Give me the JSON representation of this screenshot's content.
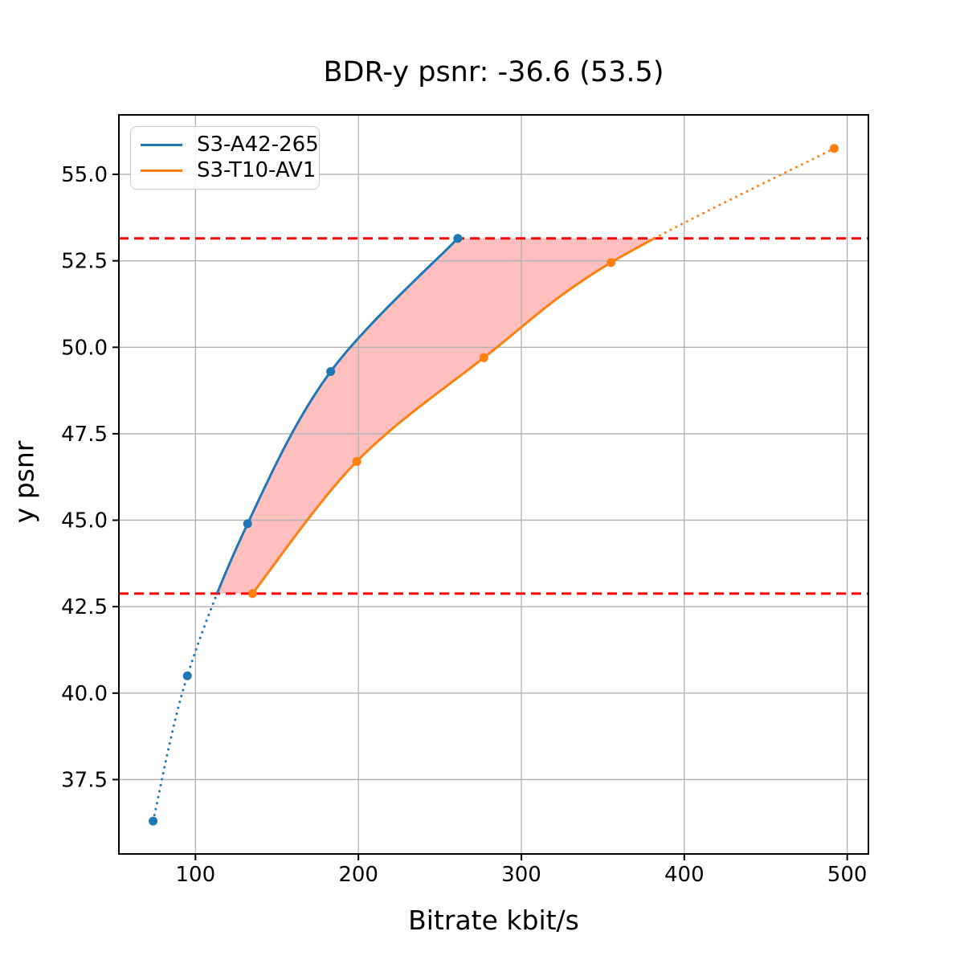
{
  "chart_data": {
    "type": "line",
    "title": "BDR-y psnr: -36.6 (53.5)",
    "xlabel": "Bitrate kbit/s",
    "ylabel": "y psnr",
    "xlim": [
      53,
      513
    ],
    "ylim": [
      35.35,
      56.72
    ],
    "x_ticks": [
      100,
      200,
      300,
      400,
      500
    ],
    "x_tick_labels": [
      "100",
      "200",
      "300",
      "400",
      "500"
    ],
    "y_ticks": [
      37.5,
      40.0,
      42.5,
      45.0,
      47.5,
      50.0,
      52.5,
      55.0
    ],
    "y_tick_labels": [
      "37.5",
      "40.0",
      "42.5",
      "45.0",
      "47.5",
      "50.0",
      "52.5",
      "55.0"
    ],
    "grid": true,
    "grid_color": "#b0b0b0",
    "legend": {
      "position": "upper left",
      "entries": [
        "S3-A42-265",
        "S3-T10-AV1"
      ]
    },
    "series": [
      {
        "name": "S3-A42-265",
        "color": "#1f77b4",
        "points": [
          [
            74,
            36.3
          ],
          [
            95,
            40.5
          ],
          [
            132,
            44.9
          ],
          [
            183,
            49.3
          ],
          [
            261,
            53.15
          ]
        ]
      },
      {
        "name": "S3-T10-AV1",
        "color": "#ff7f0e",
        "points": [
          [
            135,
            42.88
          ],
          [
            199,
            46.7
          ],
          [
            277,
            49.7
          ],
          [
            355,
            52.45
          ],
          [
            492,
            55.75
          ]
        ]
      }
    ],
    "hlines": {
      "values": [
        42.88,
        53.15
      ],
      "color": "#ff0000",
      "style": "dashed"
    },
    "shaded_region": {
      "between": [
        "S3-A42-265",
        "S3-T10-AV1"
      ],
      "y_range": [
        42.88,
        53.15
      ],
      "color": "#ff0000",
      "opacity": 0.25
    }
  }
}
